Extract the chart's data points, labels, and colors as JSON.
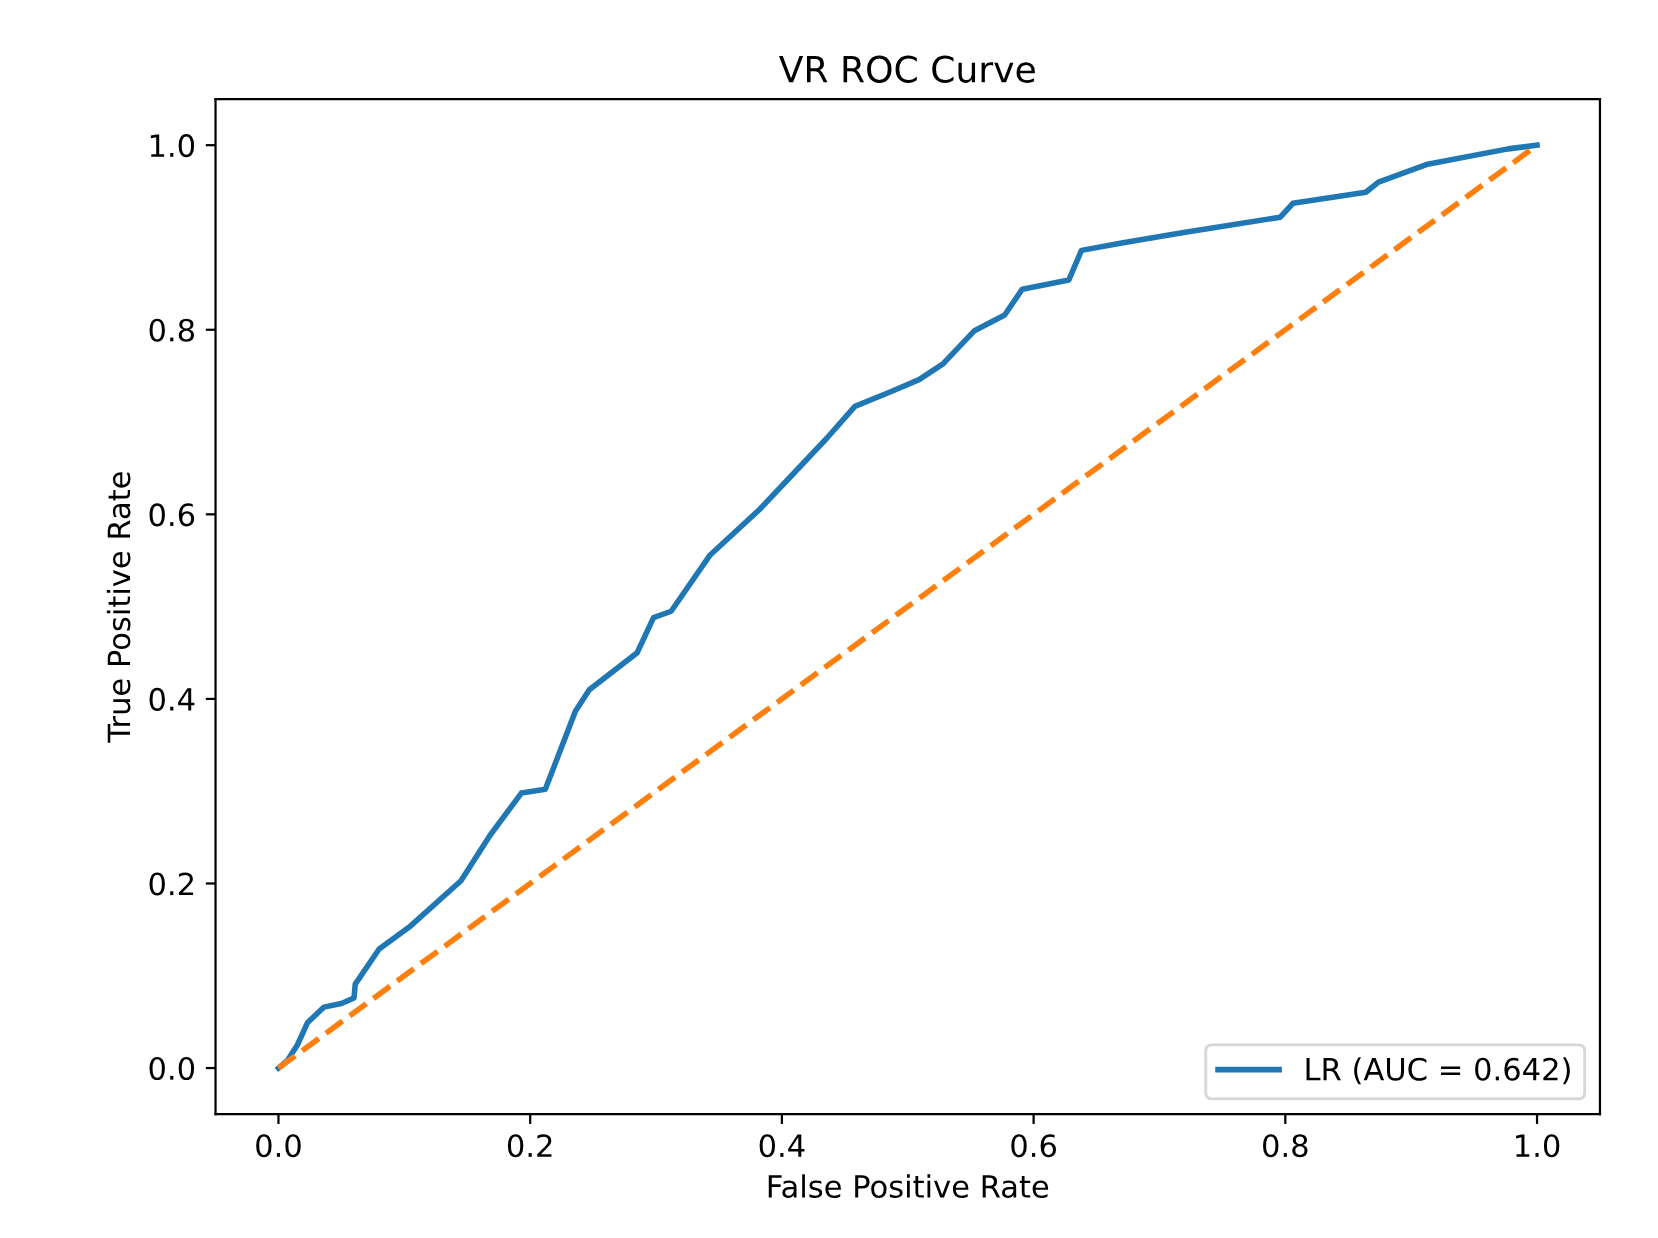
{
  "chart_data": {
    "type": "line",
    "title": "VR ROC Curve",
    "xlabel": "False Positive Rate",
    "ylabel": "True Positive Rate",
    "xlim": [
      -0.05,
      1.05
    ],
    "ylim": [
      -0.05,
      1.05
    ],
    "xticks": [
      {
        "value": 0,
        "label": "0.0"
      },
      0.2,
      0.4,
      0.6,
      0.8,
      {
        "value": 1,
        "label": "1.0"
      }
    ],
    "yticks": [
      {
        "value": 0,
        "label": "0.0"
      },
      0.2,
      0.4,
      0.6,
      0.8,
      {
        "value": 1,
        "label": "1.0"
      }
    ],
    "legend": "bottom right",
    "grid": false,
    "series": [
      {
        "name": "LR (AUC = 0.642)",
        "color": "#1f77b4",
        "line_style": "solid",
        "x": [
          0,
          0.007,
          0.015,
          0.023,
          0.036,
          0.05,
          0.06,
          0.061,
          0.08,
          0.105,
          0.145,
          0.168,
          0.193,
          0.212,
          0.236,
          0.247,
          0.285,
          0.298,
          0.312,
          0.343,
          0.382,
          0.407,
          0.436,
          0.458,
          0.485,
          0.509,
          0.528,
          0.553,
          0.577,
          0.591,
          0.628,
          0.638,
          0.67,
          0.718,
          0.796,
          0.806,
          0.864,
          0.874,
          0.912,
          0.977,
          1
        ],
        "values": [
          0,
          0.008,
          0.025,
          0.049,
          0.066,
          0.07,
          0.076,
          0.091,
          0.129,
          0.154,
          0.203,
          0.252,
          0.298,
          0.302,
          0.387,
          0.41,
          0.45,
          0.488,
          0.495,
          0.556,
          0.605,
          0.641,
          0.683,
          0.717,
          0.732,
          0.746,
          0.763,
          0.799,
          0.816,
          0.844,
          0.854,
          0.886,
          0.894,
          0.905,
          0.922,
          0.937,
          0.949,
          0.96,
          0.979,
          0.996,
          1
        ]
      },
      {
        "color": "#ff7f0e",
        "line_style": "dashed",
        "x": [
          0,
          1
        ],
        "values": [
          0,
          1
        ]
      }
    ]
  }
}
